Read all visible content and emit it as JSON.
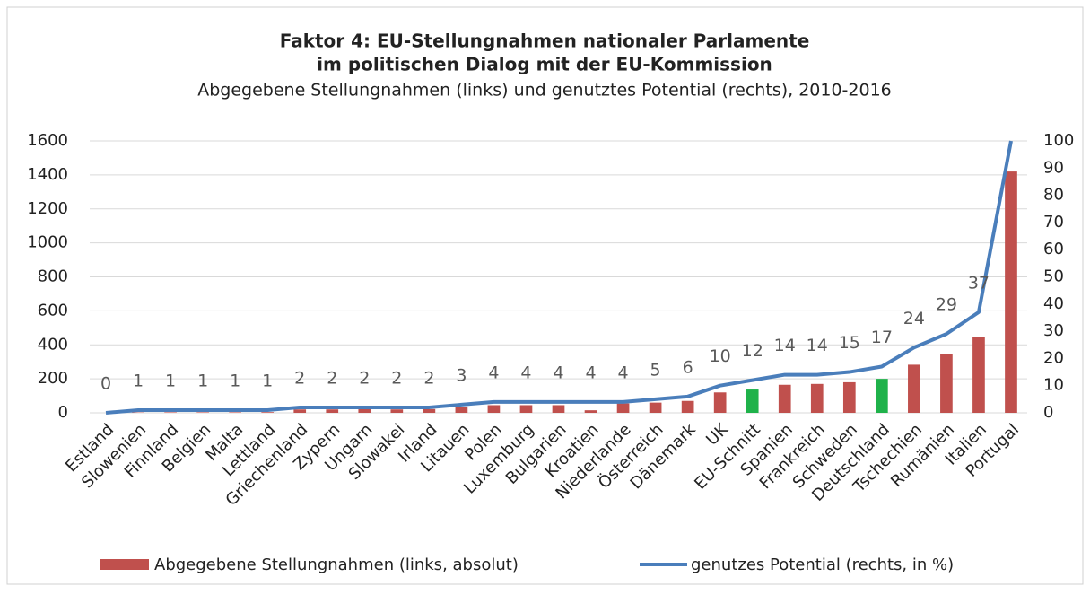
{
  "chart_data": {
    "type": "bar_line",
    "title": [
      "Faktor 4: EU-Stellungnahmen nationaler Parlamente",
      "im politischen Dialog mit der EU-Kommission"
    ],
    "subtitle": "Abgegebene Stellungnahmen (links) und genutztes Potential (rechts), 2010-2016",
    "categories": [
      "Estland",
      "Slowenien",
      "Finnland",
      "Belgien",
      "Malta",
      "Lettland",
      "Griechenland",
      "Zypern",
      "Ungarn",
      "Slowakei",
      "Irland",
      "Litauen",
      "Polen",
      "Luxemburg",
      "Bulgarien",
      "Kroatien",
      "Niederlande",
      "Österreich",
      "Dänemark",
      "UK",
      "EU-Schnitt",
      "Spanien",
      "Frankreich",
      "Schweden",
      "Deutschland",
      "Tschechien",
      "Rumänien",
      "Italien",
      "Portugal"
    ],
    "series": [
      {
        "name": "Abgegebene Stellungnahmen (links, absolut)",
        "color": "#c0504d",
        "axis": "y",
        "bar_colors": [
          "#c0504d",
          "#c0504d",
          "#c0504d",
          "#c0504d",
          "#c0504d",
          "#c0504d",
          "#c0504d",
          "#c0504d",
          "#c0504d",
          "#c0504d",
          "#c0504d",
          "#c0504d",
          "#c0504d",
          "#c0504d",
          "#c0504d",
          "#c0504d",
          "#c0504d",
          "#c0504d",
          "#c0504d",
          "#c0504d",
          "#1fb24a",
          "#c0504d",
          "#c0504d",
          "#c0504d",
          "#1fb24a",
          "#c0504d",
          "#c0504d",
          "#c0504d",
          "#c0504d"
        ],
        "values": [
          0,
          2,
          3,
          3,
          3,
          4,
          20,
          20,
          22,
          20,
          22,
          35,
          45,
          45,
          45,
          15,
          55,
          60,
          70,
          120,
          137,
          165,
          170,
          180,
          200,
          283,
          345,
          447,
          1420
        ]
      },
      {
        "name": "genutzes Potential (rechts, in %)",
        "color": "#4a7ebb",
        "axis": "y2",
        "values": [
          0,
          1,
          1,
          1,
          1,
          1,
          2,
          2,
          2,
          2,
          2,
          3,
          4,
          4,
          4,
          4,
          4,
          5,
          6,
          10,
          12,
          14,
          14,
          15,
          17,
          24,
          29,
          37,
          100
        ],
        "value_labels": [
          "0",
          "1",
          "1",
          "1",
          "1",
          "1",
          "2",
          "2",
          "2",
          "2",
          "2",
          "3",
          "4",
          "4",
          "4",
          "4",
          "4",
          "5",
          "6",
          "10",
          "12",
          "14",
          "14",
          "15",
          "17",
          "24",
          "29",
          "37",
          null
        ]
      }
    ],
    "ylim": [
      0,
      1600
    ],
    "yticks": [
      0,
      200,
      400,
      600,
      800,
      1000,
      1200,
      1400,
      1600
    ],
    "y2lim": [
      0,
      100
    ],
    "y2ticks": [
      0,
      10,
      20,
      30,
      40,
      50,
      60,
      70,
      80,
      90,
      100
    ],
    "grid": true,
    "legend": "bottom"
  }
}
